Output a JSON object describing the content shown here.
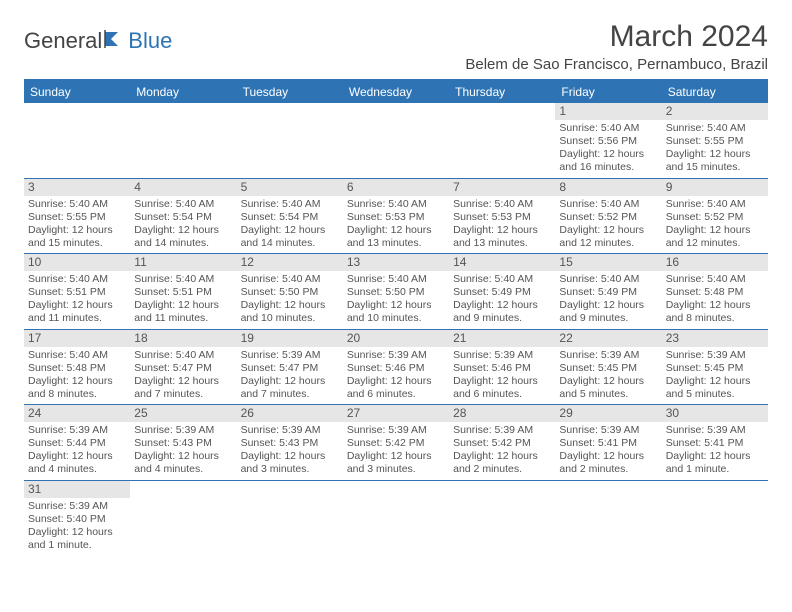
{
  "logo": {
    "part1": "General",
    "part2": "Blue"
  },
  "title": "March 2024",
  "location": "Belem de Sao Francisco, Pernambuco, Brazil",
  "days": [
    "Sunday",
    "Monday",
    "Tuesday",
    "Wednesday",
    "Thursday",
    "Friday",
    "Saturday"
  ],
  "colors": {
    "header_bg": "#2e74b5",
    "header_text": "#ffffff",
    "daynum_bg": "#e6e6e6",
    "border": "#2e74b5",
    "text": "#555555"
  },
  "weeks": [
    [
      null,
      null,
      null,
      null,
      null,
      {
        "n": "1",
        "sunrise": "Sunrise: 5:40 AM",
        "sunset": "Sunset: 5:56 PM",
        "day1": "Daylight: 12 hours",
        "day2": "and 16 minutes."
      },
      {
        "n": "2",
        "sunrise": "Sunrise: 5:40 AM",
        "sunset": "Sunset: 5:55 PM",
        "day1": "Daylight: 12 hours",
        "day2": "and 15 minutes."
      }
    ],
    [
      {
        "n": "3",
        "sunrise": "Sunrise: 5:40 AM",
        "sunset": "Sunset: 5:55 PM",
        "day1": "Daylight: 12 hours",
        "day2": "and 15 minutes."
      },
      {
        "n": "4",
        "sunrise": "Sunrise: 5:40 AM",
        "sunset": "Sunset: 5:54 PM",
        "day1": "Daylight: 12 hours",
        "day2": "and 14 minutes."
      },
      {
        "n": "5",
        "sunrise": "Sunrise: 5:40 AM",
        "sunset": "Sunset: 5:54 PM",
        "day1": "Daylight: 12 hours",
        "day2": "and 14 minutes."
      },
      {
        "n": "6",
        "sunrise": "Sunrise: 5:40 AM",
        "sunset": "Sunset: 5:53 PM",
        "day1": "Daylight: 12 hours",
        "day2": "and 13 minutes."
      },
      {
        "n": "7",
        "sunrise": "Sunrise: 5:40 AM",
        "sunset": "Sunset: 5:53 PM",
        "day1": "Daylight: 12 hours",
        "day2": "and 13 minutes."
      },
      {
        "n": "8",
        "sunrise": "Sunrise: 5:40 AM",
        "sunset": "Sunset: 5:52 PM",
        "day1": "Daylight: 12 hours",
        "day2": "and 12 minutes."
      },
      {
        "n": "9",
        "sunrise": "Sunrise: 5:40 AM",
        "sunset": "Sunset: 5:52 PM",
        "day1": "Daylight: 12 hours",
        "day2": "and 12 minutes."
      }
    ],
    [
      {
        "n": "10",
        "sunrise": "Sunrise: 5:40 AM",
        "sunset": "Sunset: 5:51 PM",
        "day1": "Daylight: 12 hours",
        "day2": "and 11 minutes."
      },
      {
        "n": "11",
        "sunrise": "Sunrise: 5:40 AM",
        "sunset": "Sunset: 5:51 PM",
        "day1": "Daylight: 12 hours",
        "day2": "and 11 minutes."
      },
      {
        "n": "12",
        "sunrise": "Sunrise: 5:40 AM",
        "sunset": "Sunset: 5:50 PM",
        "day1": "Daylight: 12 hours",
        "day2": "and 10 minutes."
      },
      {
        "n": "13",
        "sunrise": "Sunrise: 5:40 AM",
        "sunset": "Sunset: 5:50 PM",
        "day1": "Daylight: 12 hours",
        "day2": "and 10 minutes."
      },
      {
        "n": "14",
        "sunrise": "Sunrise: 5:40 AM",
        "sunset": "Sunset: 5:49 PM",
        "day1": "Daylight: 12 hours",
        "day2": "and 9 minutes."
      },
      {
        "n": "15",
        "sunrise": "Sunrise: 5:40 AM",
        "sunset": "Sunset: 5:49 PM",
        "day1": "Daylight: 12 hours",
        "day2": "and 9 minutes."
      },
      {
        "n": "16",
        "sunrise": "Sunrise: 5:40 AM",
        "sunset": "Sunset: 5:48 PM",
        "day1": "Daylight: 12 hours",
        "day2": "and 8 minutes."
      }
    ],
    [
      {
        "n": "17",
        "sunrise": "Sunrise: 5:40 AM",
        "sunset": "Sunset: 5:48 PM",
        "day1": "Daylight: 12 hours",
        "day2": "and 8 minutes."
      },
      {
        "n": "18",
        "sunrise": "Sunrise: 5:40 AM",
        "sunset": "Sunset: 5:47 PM",
        "day1": "Daylight: 12 hours",
        "day2": "and 7 minutes."
      },
      {
        "n": "19",
        "sunrise": "Sunrise: 5:39 AM",
        "sunset": "Sunset: 5:47 PM",
        "day1": "Daylight: 12 hours",
        "day2": "and 7 minutes."
      },
      {
        "n": "20",
        "sunrise": "Sunrise: 5:39 AM",
        "sunset": "Sunset: 5:46 PM",
        "day1": "Daylight: 12 hours",
        "day2": "and 6 minutes."
      },
      {
        "n": "21",
        "sunrise": "Sunrise: 5:39 AM",
        "sunset": "Sunset: 5:46 PM",
        "day1": "Daylight: 12 hours",
        "day2": "and 6 minutes."
      },
      {
        "n": "22",
        "sunrise": "Sunrise: 5:39 AM",
        "sunset": "Sunset: 5:45 PM",
        "day1": "Daylight: 12 hours",
        "day2": "and 5 minutes."
      },
      {
        "n": "23",
        "sunrise": "Sunrise: 5:39 AM",
        "sunset": "Sunset: 5:45 PM",
        "day1": "Daylight: 12 hours",
        "day2": "and 5 minutes."
      }
    ],
    [
      {
        "n": "24",
        "sunrise": "Sunrise: 5:39 AM",
        "sunset": "Sunset: 5:44 PM",
        "day1": "Daylight: 12 hours",
        "day2": "and 4 minutes."
      },
      {
        "n": "25",
        "sunrise": "Sunrise: 5:39 AM",
        "sunset": "Sunset: 5:43 PM",
        "day1": "Daylight: 12 hours",
        "day2": "and 4 minutes."
      },
      {
        "n": "26",
        "sunrise": "Sunrise: 5:39 AM",
        "sunset": "Sunset: 5:43 PM",
        "day1": "Daylight: 12 hours",
        "day2": "and 3 minutes."
      },
      {
        "n": "27",
        "sunrise": "Sunrise: 5:39 AM",
        "sunset": "Sunset: 5:42 PM",
        "day1": "Daylight: 12 hours",
        "day2": "and 3 minutes."
      },
      {
        "n": "28",
        "sunrise": "Sunrise: 5:39 AM",
        "sunset": "Sunset: 5:42 PM",
        "day1": "Daylight: 12 hours",
        "day2": "and 2 minutes."
      },
      {
        "n": "29",
        "sunrise": "Sunrise: 5:39 AM",
        "sunset": "Sunset: 5:41 PM",
        "day1": "Daylight: 12 hours",
        "day2": "and 2 minutes."
      },
      {
        "n": "30",
        "sunrise": "Sunrise: 5:39 AM",
        "sunset": "Sunset: 5:41 PM",
        "day1": "Daylight: 12 hours",
        "day2": "and 1 minute."
      }
    ],
    [
      {
        "n": "31",
        "sunrise": "Sunrise: 5:39 AM",
        "sunset": "Sunset: 5:40 PM",
        "day1": "Daylight: 12 hours",
        "day2": "and 1 minute."
      },
      null,
      null,
      null,
      null,
      null,
      null
    ]
  ]
}
